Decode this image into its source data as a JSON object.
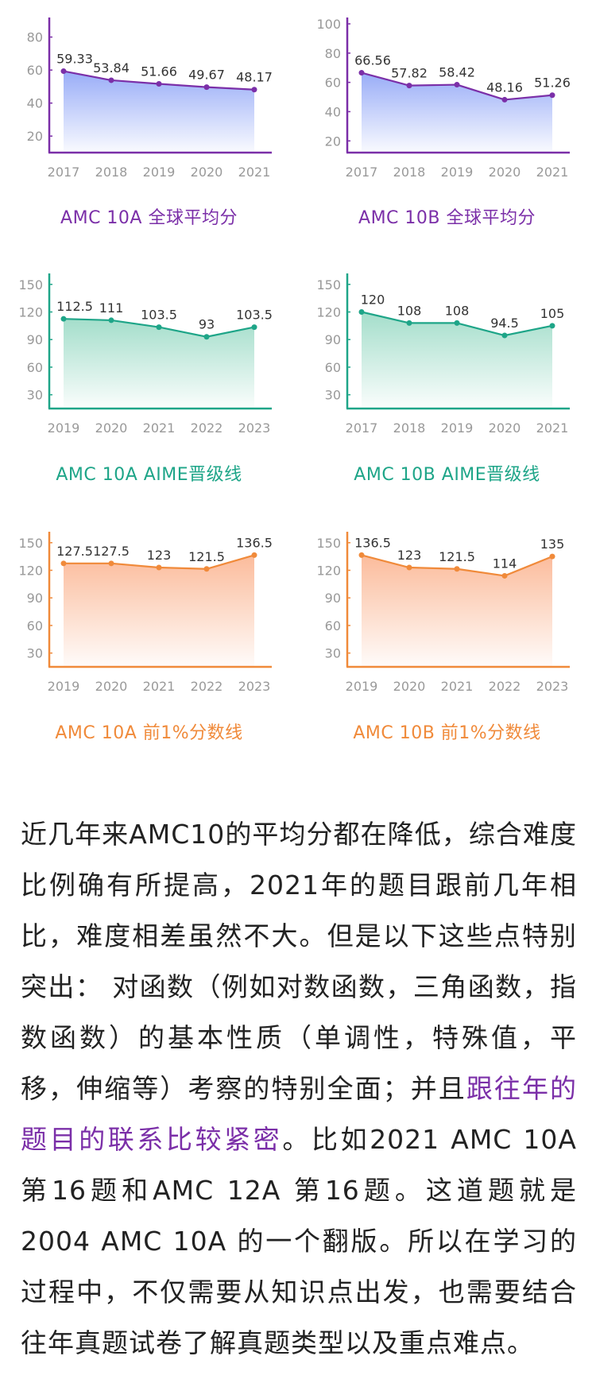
{
  "chart_data": [
    {
      "type": "area",
      "title": "AMC 10A 全球平均分",
      "color": "#7b2fa8",
      "fill_top": "#93a8f7",
      "x": [
        "2017",
        "2018",
        "2019",
        "2020",
        "2021"
      ],
      "values": [
        59.33,
        53.84,
        51.66,
        49.67,
        48.17
      ],
      "labels": [
        "59.33",
        "53.84",
        "51.66",
        "49.67",
        "48.17"
      ],
      "yticks": [
        "20",
        "40",
        "60",
        "80"
      ],
      "ylim": [
        10,
        88
      ]
    },
    {
      "type": "area",
      "title": "AMC 10B 全球平均分",
      "color": "#7b2fa8",
      "fill_top": "#93a8f7",
      "x": [
        "2017",
        "2018",
        "2019",
        "2020",
        "2021"
      ],
      "values": [
        66.56,
        57.82,
        58.42,
        48.16,
        51.26
      ],
      "labels": [
        "66.56",
        "57.82",
        "58.42",
        "48.16",
        "51.26"
      ],
      "yticks": [
        "20",
        "40",
        "60",
        "80",
        "100"
      ],
      "ylim": [
        12,
        100
      ]
    },
    {
      "type": "area",
      "title": "AMC 10A AIME晋级线",
      "color": "#1ea588",
      "fill_top": "#9fdcc8",
      "x": [
        "2019",
        "2020",
        "2021",
        "2022",
        "2023"
      ],
      "values": [
        112.5,
        111,
        103.5,
        93,
        103.5
      ],
      "labels": [
        "112.5",
        "111",
        "103.5",
        "93",
        "103.5"
      ],
      "yticks": [
        "30",
        "60",
        "90",
        "120",
        "150"
      ],
      "ylim": [
        15,
        155
      ]
    },
    {
      "type": "area",
      "title": "AMC 10B AIME晋级线",
      "color": "#1ea588",
      "fill_top": "#9fdcc8",
      "x": [
        "2017",
        "2018",
        "2019",
        "2020",
        "2021"
      ],
      "values": [
        120,
        108,
        108,
        94.5,
        105
      ],
      "labels": [
        "120",
        "108",
        "108",
        "94.5",
        "105"
      ],
      "yticks": [
        "30",
        "60",
        "90",
        "120",
        "150"
      ],
      "ylim": [
        15,
        155
      ]
    },
    {
      "type": "area",
      "title": "AMC 10A 前1%分数线",
      "color": "#f08a3a",
      "fill_top": "#fbb896",
      "x": [
        "2019",
        "2020",
        "2021",
        "2022",
        "2023"
      ],
      "values": [
        127.5,
        127.5,
        123,
        121.5,
        136.5
      ],
      "labels": [
        "127.5",
        "127.5",
        "123",
        "121.5",
        "136.5"
      ],
      "yticks": [
        "30",
        "60",
        "90",
        "120",
        "150"
      ],
      "ylim": [
        15,
        155
      ]
    },
    {
      "type": "area",
      "title": "AMC 10B 前1%分数线",
      "color": "#f08a3a",
      "fill_top": "#fbb896",
      "x": [
        "2019",
        "2020",
        "2021",
        "2022",
        "2023"
      ],
      "values": [
        136.5,
        123,
        121.5,
        114,
        135
      ],
      "labels": [
        "136.5",
        "123",
        "121.5",
        "114",
        "135"
      ],
      "yticks": [
        "30",
        "60",
        "90",
        "120",
        "150"
      ],
      "ylim": [
        15,
        155
      ]
    }
  ],
  "article": {
    "part1": "近几年来AMC10的平均分都在降低，综合难度比例确有所提高，2021年的题目跟前几年相比，难度相差虽然不大。但是以下这些点特别突出： 对函数（例如对数函数，三角函数，指数函数）的基本性质（单调性，特殊值，平移，伸缩等）考察的特别全面；并且",
    "highlight": "跟往年的题目的联系比较紧密",
    "part2": "。比如2021 AMC 10A 第16题和AMC 12A 第16题。这道题就是2004 AMC 10A 的一个翻版。所以在学习的过程中，不仅需要从知识点出发，也需要结合往年真题试卷了解真题类型以及重点难点。"
  }
}
